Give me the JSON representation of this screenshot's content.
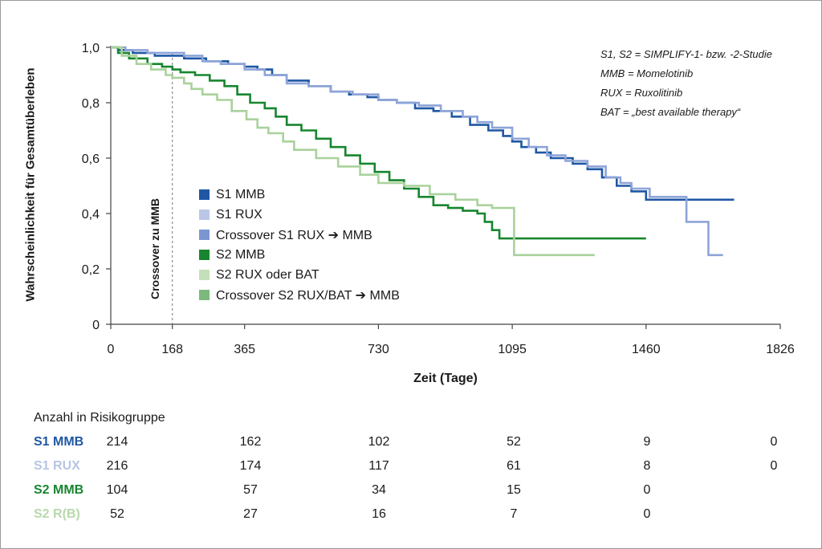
{
  "chart_data": {
    "type": "line",
    "step": true,
    "ylabel": "Wahrscheinlichkeit für Gesamtüberleben",
    "xlabel": "Zeit (Tage)",
    "xlim": [
      0,
      1826
    ],
    "ylim": [
      0,
      1.0
    ],
    "x_ticks": [
      "0",
      "168",
      "365",
      "730",
      "1095",
      "1460",
      "1826"
    ],
    "x_tick_values": [
      0,
      168,
      365,
      730,
      1095,
      1460,
      1826
    ],
    "y_ticks": [
      "0",
      "0,2",
      "0,4",
      "0,6",
      "0,8",
      "1,0"
    ],
    "y_tick_values": [
      0,
      0.2,
      0.4,
      0.6,
      0.8,
      1.0
    ],
    "crossover": {
      "x": 168,
      "label": "Crossover zu MMB"
    },
    "annotations": [
      "S1, S2 = SIMPLIFY-1- bzw. -2-Studie",
      "MMB = Momelotinib",
      "RUX = Ruxolitinib",
      "BAT = „best available therapy“"
    ],
    "legend": [
      {
        "label": "S1 MMB",
        "color": "#1f57a4"
      },
      {
        "label": "S1 RUX",
        "color": "#b9c6e6"
      },
      {
        "label": "Crossover S1 RUX ➔ MMB",
        "color": "#7b97d1"
      },
      {
        "label": "S2 MMB",
        "color": "#17862f"
      },
      {
        "label": "S2 RUX oder BAT",
        "color": "#c4dfba"
      },
      {
        "label": "Crossover S2 RUX/BAT ➔ MMB",
        "color": "#7db87c"
      }
    ],
    "series": [
      {
        "key": "s1mmb",
        "color": "#1f57a4",
        "points": [
          [
            0,
            1.0
          ],
          [
            20,
            0.99
          ],
          [
            60,
            0.98
          ],
          [
            120,
            0.97
          ],
          [
            168,
            0.97
          ],
          [
            200,
            0.96
          ],
          [
            260,
            0.95
          ],
          [
            320,
            0.94
          ],
          [
            365,
            0.93
          ],
          [
            400,
            0.92
          ],
          [
            440,
            0.9
          ],
          [
            480,
            0.88
          ],
          [
            540,
            0.86
          ],
          [
            600,
            0.84
          ],
          [
            650,
            0.83
          ],
          [
            700,
            0.82
          ],
          [
            730,
            0.81
          ],
          [
            780,
            0.8
          ],
          [
            830,
            0.78
          ],
          [
            880,
            0.77
          ],
          [
            930,
            0.75
          ],
          [
            980,
            0.72
          ],
          [
            1030,
            0.7
          ],
          [
            1070,
            0.68
          ],
          [
            1095,
            0.66
          ],
          [
            1120,
            0.64
          ],
          [
            1160,
            0.62
          ],
          [
            1200,
            0.6
          ],
          [
            1260,
            0.58
          ],
          [
            1300,
            0.56
          ],
          [
            1340,
            0.53
          ],
          [
            1380,
            0.5
          ],
          [
            1420,
            0.48
          ],
          [
            1460,
            0.45
          ],
          [
            1580,
            0.45
          ],
          [
            1700,
            0.45
          ]
        ]
      },
      {
        "key": "s1rux",
        "color": "#8ea4d8",
        "points": [
          [
            0,
            1.0
          ],
          [
            40,
            0.99
          ],
          [
            100,
            0.98
          ],
          [
            168,
            0.98
          ],
          [
            200,
            0.97
          ],
          [
            250,
            0.95
          ],
          [
            300,
            0.94
          ],
          [
            365,
            0.92
          ],
          [
            420,
            0.9
          ],
          [
            480,
            0.87
          ],
          [
            540,
            0.86
          ],
          [
            600,
            0.84
          ],
          [
            660,
            0.83
          ],
          [
            730,
            0.81
          ],
          [
            780,
            0.8
          ],
          [
            840,
            0.79
          ],
          [
            900,
            0.77
          ],
          [
            960,
            0.75
          ],
          [
            1000,
            0.73
          ],
          [
            1040,
            0.71
          ],
          [
            1095,
            0.67
          ],
          [
            1140,
            0.64
          ],
          [
            1190,
            0.61
          ],
          [
            1240,
            0.59
          ],
          [
            1300,
            0.57
          ],
          [
            1350,
            0.53
          ],
          [
            1390,
            0.51
          ],
          [
            1420,
            0.49
          ],
          [
            1470,
            0.46
          ],
          [
            1560,
            0.46
          ],
          [
            1570,
            0.37
          ],
          [
            1620,
            0.37
          ],
          [
            1630,
            0.25
          ],
          [
            1670,
            0.25
          ]
        ]
      },
      {
        "key": "s2mmb",
        "color": "#17862f",
        "points": [
          [
            0,
            1.0
          ],
          [
            20,
            0.98
          ],
          [
            50,
            0.96
          ],
          [
            100,
            0.94
          ],
          [
            140,
            0.93
          ],
          [
            168,
            0.92
          ],
          [
            190,
            0.91
          ],
          [
            230,
            0.9
          ],
          [
            270,
            0.88
          ],
          [
            310,
            0.86
          ],
          [
            345,
            0.83
          ],
          [
            380,
            0.8
          ],
          [
            420,
            0.78
          ],
          [
            450,
            0.75
          ],
          [
            480,
            0.72
          ],
          [
            520,
            0.7
          ],
          [
            560,
            0.67
          ],
          [
            600,
            0.64
          ],
          [
            640,
            0.61
          ],
          [
            680,
            0.58
          ],
          [
            720,
            0.55
          ],
          [
            760,
            0.52
          ],
          [
            800,
            0.49
          ],
          [
            840,
            0.46
          ],
          [
            880,
            0.43
          ],
          [
            920,
            0.42
          ],
          [
            960,
            0.41
          ],
          [
            1000,
            0.4
          ],
          [
            1020,
            0.37
          ],
          [
            1040,
            0.34
          ],
          [
            1060,
            0.31
          ],
          [
            1200,
            0.31
          ],
          [
            1460,
            0.31
          ]
        ]
      },
      {
        "key": "s2rux",
        "color": "#a9d29b",
        "points": [
          [
            0,
            1.0
          ],
          [
            30,
            0.97
          ],
          [
            70,
            0.94
          ],
          [
            110,
            0.92
          ],
          [
            150,
            0.9
          ],
          [
            168,
            0.89
          ],
          [
            200,
            0.87
          ],
          [
            220,
            0.85
          ],
          [
            250,
            0.83
          ],
          [
            290,
            0.81
          ],
          [
            330,
            0.77
          ],
          [
            370,
            0.74
          ],
          [
            400,
            0.71
          ],
          [
            430,
            0.69
          ],
          [
            470,
            0.66
          ],
          [
            500,
            0.63
          ],
          [
            560,
            0.6
          ],
          [
            620,
            0.57
          ],
          [
            680,
            0.54
          ],
          [
            730,
            0.51
          ],
          [
            800,
            0.5
          ],
          [
            870,
            0.47
          ],
          [
            940,
            0.45
          ],
          [
            1000,
            0.43
          ],
          [
            1040,
            0.42
          ],
          [
            1090,
            0.42
          ],
          [
            1100,
            0.25
          ],
          [
            1320,
            0.25
          ]
        ]
      }
    ]
  },
  "risk": {
    "title": "Anzahl in Risikogruppe",
    "rows": [
      {
        "name": "S1 MMB",
        "color": "#1f57a4",
        "values": [
          "214",
          "162",
          "102",
          "52",
          "9",
          "0"
        ]
      },
      {
        "name": "S1 RUX",
        "color": "#b7c5e4",
        "values": [
          "216",
          "174",
          "117",
          "61",
          "8",
          "0"
        ]
      },
      {
        "name": "S2 MMB",
        "color": "#17862f",
        "values": [
          "104",
          "57",
          "34",
          "15",
          "0"
        ]
      },
      {
        "name": "S2 R(B)",
        "color": "#b8d8ad",
        "values": [
          "52",
          "27",
          "16",
          "7",
          "0"
        ]
      }
    ]
  }
}
